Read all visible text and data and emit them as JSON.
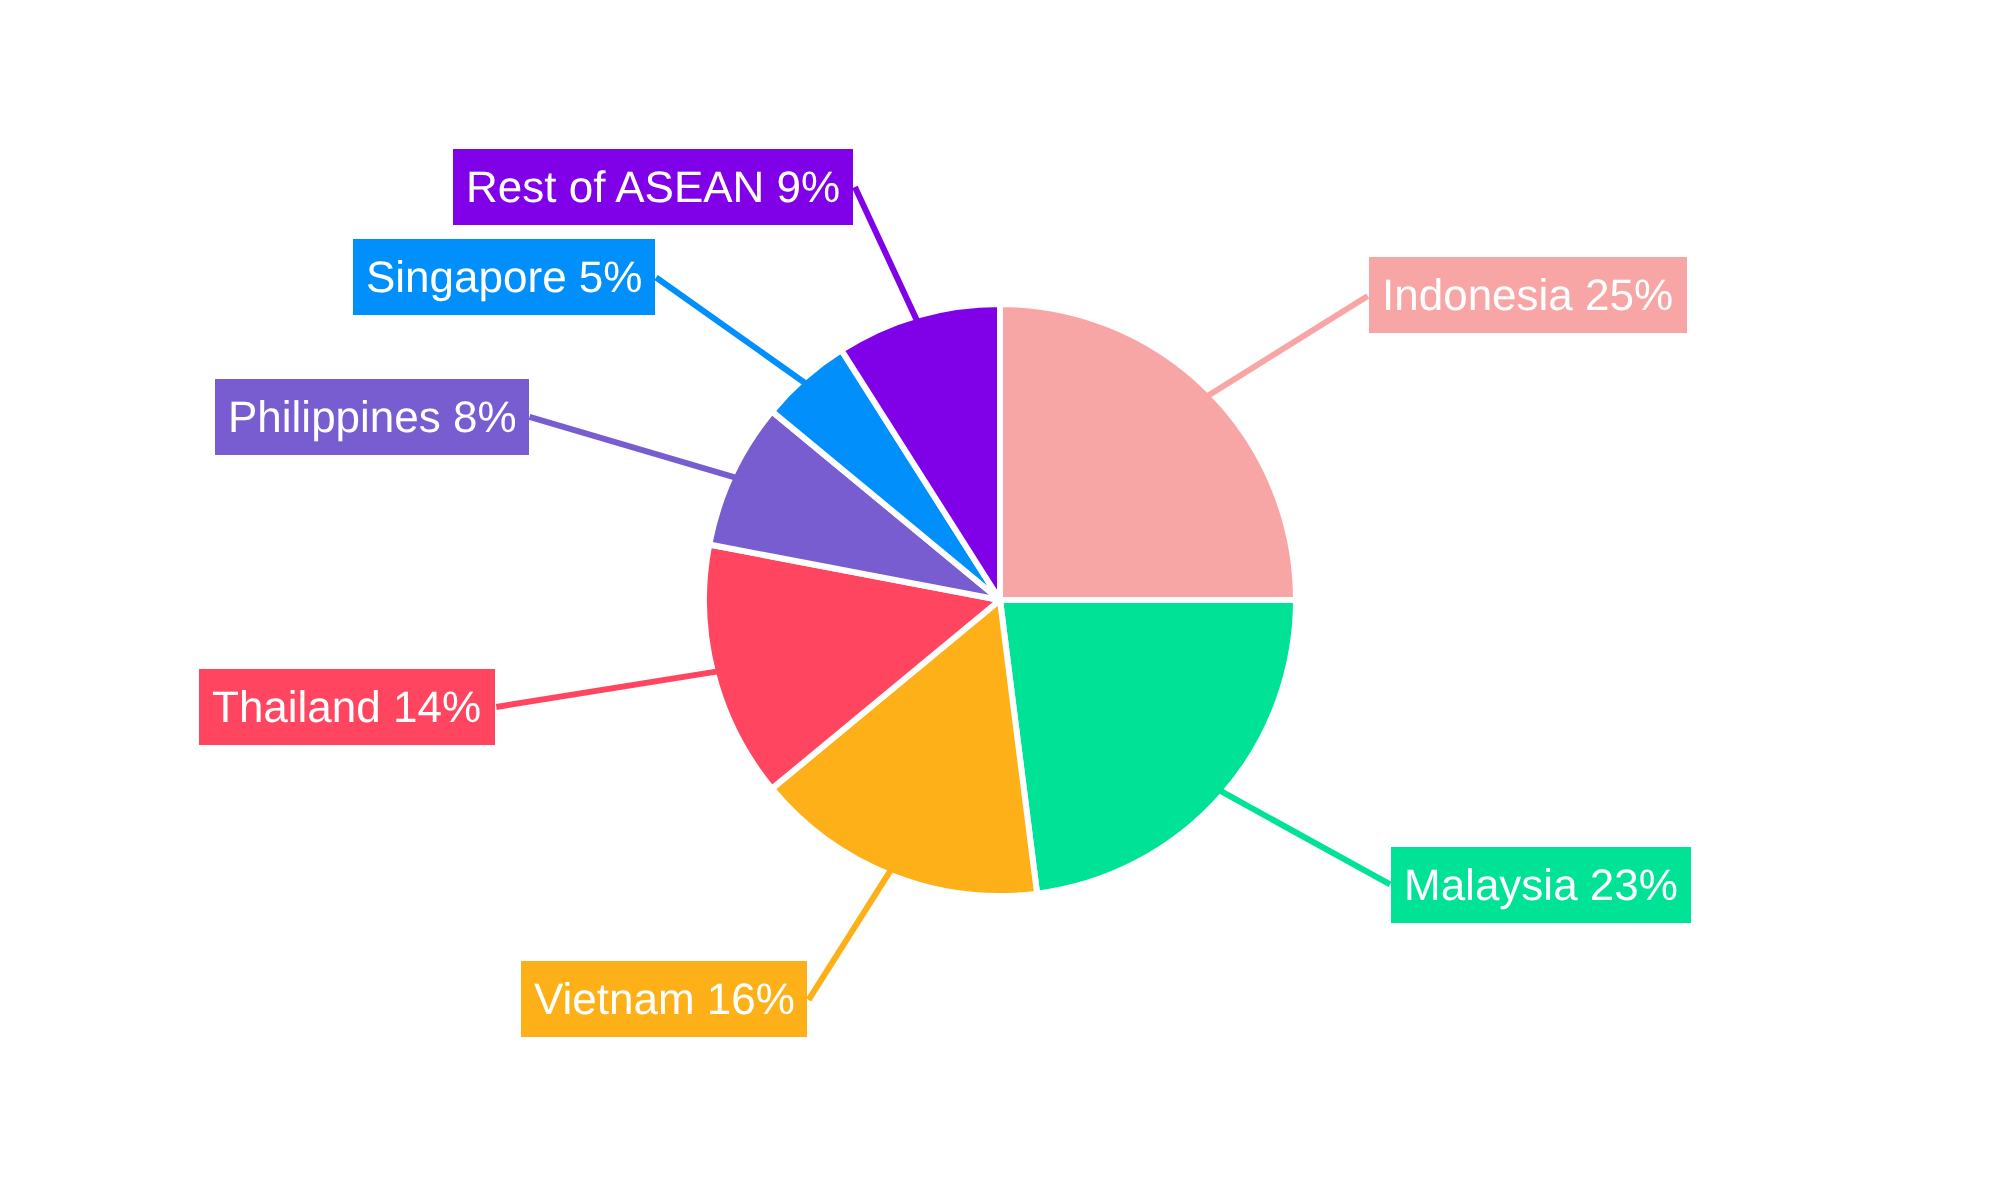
{
  "chart_data": {
    "type": "pie",
    "categories": [
      "Indonesia",
      "Malaysia",
      "Vietnam",
      "Thailand",
      "Philippines",
      "Singapore",
      "Rest of ASEAN"
    ],
    "values": [
      25,
      23,
      16,
      14,
      8,
      5,
      9
    ],
    "value_labels": [
      "25%",
      "23%",
      "16%",
      "14%",
      "8%",
      "5%",
      "9%"
    ],
    "colors": [
      "#f8a5a5",
      "#00e396",
      "#feb019",
      "#ff4560",
      "#775dd0",
      "#008ffb",
      "#8000e8"
    ],
    "legend": false
  }
}
